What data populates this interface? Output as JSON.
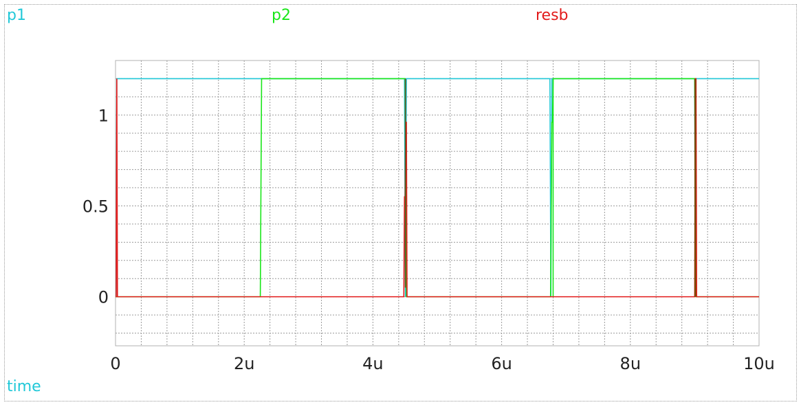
{
  "signals": [
    {
      "name": "p1",
      "color": "#21c8d8"
    },
    {
      "name": "p2",
      "color": "#19e619"
    },
    {
      "name": "resb",
      "color": "#e21a1a"
    }
  ],
  "time_label": "time",
  "time_label_color": "#21c8d8",
  "chart_data": {
    "type": "line",
    "xlim": [
      0,
      10
    ],
    "ylim": [
      -0.27,
      1.3
    ],
    "x_unit": "u",
    "xticks": [
      0,
      2,
      4,
      6,
      8,
      10
    ],
    "xtick_labels": [
      "0",
      "2u",
      "4u",
      "6u",
      "8u",
      "10u"
    ],
    "yticks": [
      0,
      0.5,
      1
    ],
    "ytick_labels": [
      "0",
      "0.5",
      "1"
    ],
    "grid": true,
    "series": [
      {
        "name": "p1",
        "color": "#21c8d8",
        "x": [
          0,
          0.01,
          0.02,
          4.49,
          4.505,
          4.52,
          6.75,
          6.765,
          6.78,
          9.0,
          9.01,
          9.02,
          10
        ],
        "y": [
          0,
          0,
          1.2,
          1.2,
          0,
          1.2,
          1.2,
          0,
          1.2,
          1.2,
          0,
          1.2,
          1.2
        ]
      },
      {
        "name": "p2",
        "color": "#19e619",
        "x": [
          0,
          2.25,
          2.27,
          4.5,
          4.52,
          6.76,
          6.78,
          6.79,
          6.8,
          9.0,
          9.02,
          10
        ],
        "y": [
          0,
          0,
          1.2,
          1.2,
          0,
          0,
          0.96,
          0.96,
          1.2,
          1.2,
          0,
          0
        ],
        "extra_lines": [
          {
            "x": [
              6.8,
              6.8
            ],
            "y": [
              0,
              1.2
            ]
          }
        ]
      },
      {
        "name": "resb",
        "color": "#e21a1a",
        "x": [
          0,
          0.01,
          0.02,
          0.03,
          4.48,
          4.49,
          4.5,
          4.51,
          4.52,
          4.53,
          9.0,
          9.01,
          9.02,
          9.03,
          10
        ],
        "y": [
          0,
          0,
          1.2,
          0,
          0,
          0.55,
          0.55,
          0.96,
          0.96,
          0,
          0,
          1.2,
          1.2,
          0,
          0
        ]
      }
    ],
    "extra_marks": [
      {
        "color": "#5a5a20",
        "x": [
          4.505,
          4.505
        ],
        "y": [
          0.05,
          1.2
        ]
      },
      {
        "color": "#7a4a00",
        "x": [
          9.005,
          9.005
        ],
        "y": [
          0,
          1.2
        ]
      },
      {
        "color": "#7a4a00",
        "x": [
          9.012,
          9.012
        ],
        "y": [
          0,
          1.2
        ]
      }
    ]
  }
}
